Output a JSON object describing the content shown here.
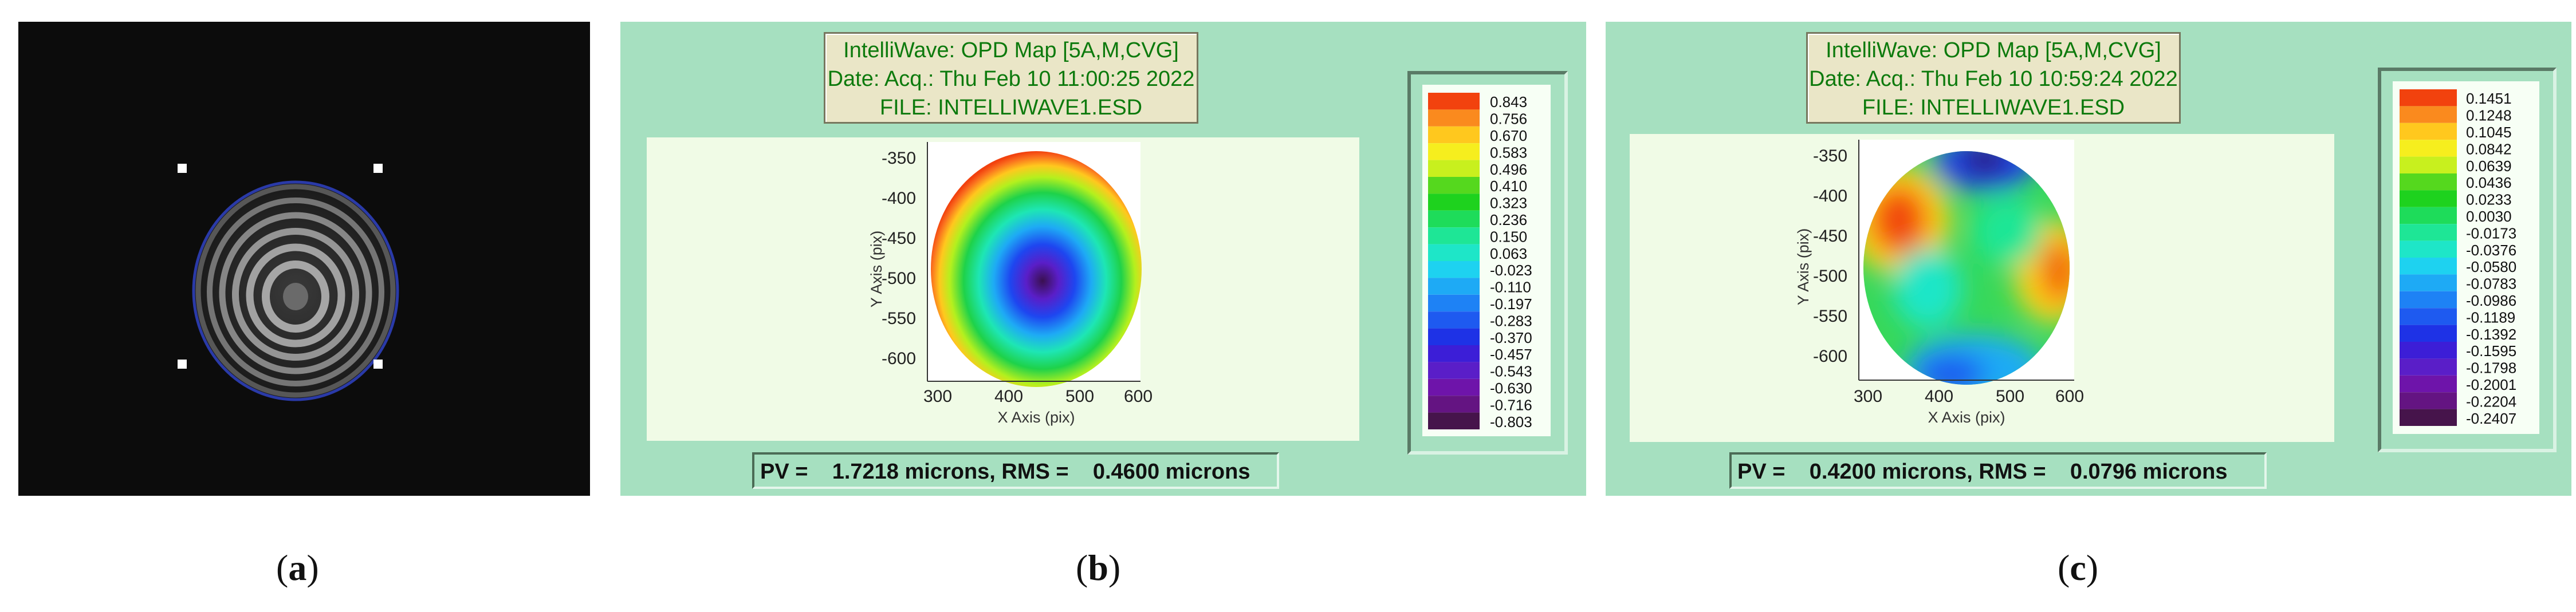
{
  "panel_a": {
    "caption_letter": "a"
  },
  "panel_b": {
    "title_lines": [
      "IntelliWave: OPD Map [5A,M,CVG]",
      "Date: Acq.: Thu Feb 10 11:00:25 2022",
      "FILE: INTELLIWAVE1.ESD"
    ],
    "y_ticks": [
      "-350",
      "-400",
      "-450",
      "-500",
      "-550",
      "-600"
    ],
    "x_ticks": [
      "300",
      "400",
      "500",
      "600"
    ],
    "y_axis_label": "Y Axis   (pix)",
    "x_axis_label": "X Axis   (pix)",
    "legend_values": [
      "0.843",
      "0.756",
      "0.670",
      "0.583",
      "0.496",
      "0.410",
      "0.323",
      "0.236",
      "0.150",
      "0.063",
      "-0.023",
      "-0.110",
      "-0.197",
      "-0.283",
      "-0.370",
      "-0.457",
      "-0.543",
      "-0.630",
      "-0.716",
      "-0.803"
    ],
    "pv_label": "PV =",
    "pv_value": "1.7218 microns,",
    "rms_label": "RMS =",
    "rms_value": "0.4600 microns",
    "caption_letter": "b"
  },
  "panel_c": {
    "title_lines": [
      "IntelliWave: OPD Map [5A,M,CVG]",
      "Date: Acq.: Thu Feb 10 10:59:24 2022",
      "FILE: INTELLIWAVE1.ESD"
    ],
    "y_ticks": [
      "-350",
      "-400",
      "-450",
      "-500",
      "-550",
      "-600"
    ],
    "x_ticks": [
      "300",
      "400",
      "500",
      "600"
    ],
    "y_axis_label": "Y Axis   (pix)",
    "x_axis_label": "X Axis   (pix)",
    "legend_values": [
      "0.1451",
      "0.1248",
      "0.1045",
      "0.0842",
      "0.0639",
      "0.0436",
      "0.0233",
      "0.0030",
      "-0.0173",
      "-0.0376",
      "-0.0580",
      "-0.0783",
      "-0.0986",
      "-0.1189",
      "-0.1392",
      "-0.1595",
      "-0.1798",
      "-0.2001",
      "-0.2204",
      "-0.2407"
    ],
    "pv_label": "PV =",
    "pv_value": "0.4200 microns,",
    "rms_label": "RMS =",
    "rms_value": "0.0796 microns",
    "caption_letter": "c"
  },
  "legend_colors": [
    "#f2420e",
    "#fa8a1e",
    "#ffc81e",
    "#f6ee1e",
    "#c8f01e",
    "#55d81e",
    "#1ed21e",
    "#1edc5a",
    "#1ee696",
    "#1ee6c8",
    "#1ed2f0",
    "#1eaaf5",
    "#1e82f5",
    "#1e5af0",
    "#1e32e6",
    "#3c1ed7",
    "#5a1ec8",
    "#6e14aa",
    "#641482",
    "#46144b"
  ]
}
